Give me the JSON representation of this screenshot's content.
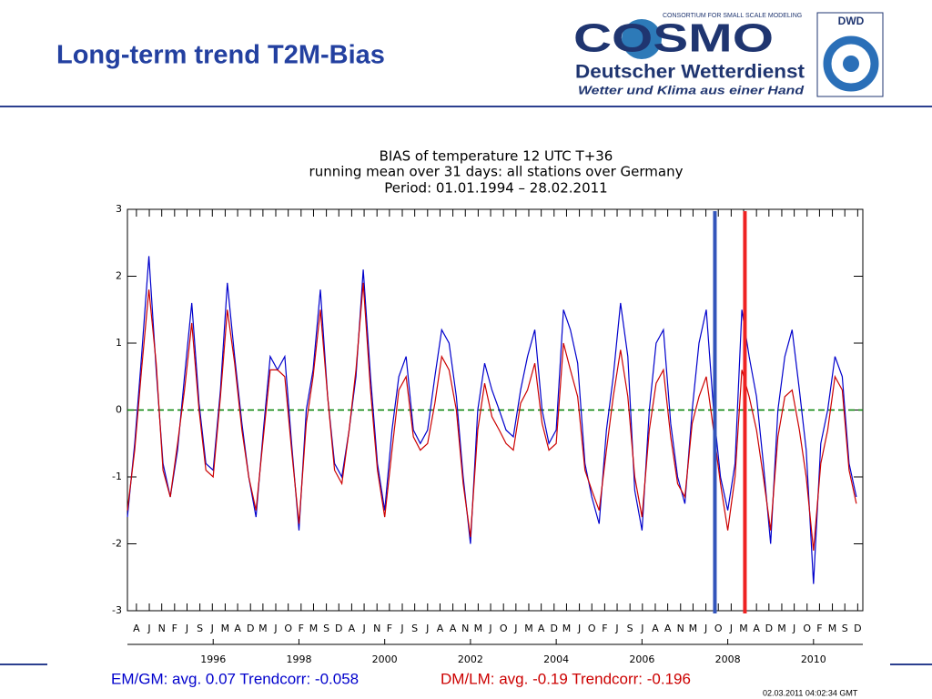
{
  "slide": {
    "title": "Long-term trend T2M-Bias",
    "logo_consortium": "CONSORTIUM FOR SMALL SCALE MODELING",
    "logo_cosmo": "COSMO",
    "logo_dwd_name": "Deutscher Wetterdienst",
    "logo_slogan": "Wetter und Klima aus einer Hand",
    "logo_dwd": "DWD",
    "footer_em": "EM/GM: avg.  0.07 Trendcorr: -0.058",
    "footer_dm": "DM/LM: avg. -0.19 Trendcorr: -0.196",
    "timestamp": "02.03.2011 04:02:34 GMT"
  },
  "chart_data": {
    "type": "line",
    "title": "BIAS of temperature 12 UTC T+36",
    "subtitle": "running mean over 31 days: all stations over Germany",
    "period": "Period: 01.01.1994 – 28.02.2011",
    "x": [
      1994.0,
      1994.17,
      1994.33,
      1994.5,
      1994.67,
      1994.83,
      1995.0,
      1995.17,
      1995.33,
      1995.5,
      1995.67,
      1995.83,
      1996.0,
      1996.17,
      1996.33,
      1996.5,
      1996.67,
      1996.83,
      1997.0,
      1997.17,
      1997.33,
      1997.5,
      1997.67,
      1997.83,
      1998.0,
      1998.17,
      1998.33,
      1998.5,
      1998.67,
      1998.83,
      1999.0,
      1999.17,
      1999.33,
      1999.5,
      1999.67,
      1999.83,
      2000.0,
      2000.17,
      2000.33,
      2000.5,
      2000.67,
      2000.83,
      2001.0,
      2001.17,
      2001.33,
      2001.5,
      2001.67,
      2001.83,
      2002.0,
      2002.17,
      2002.33,
      2002.5,
      2002.67,
      2002.83,
      2003.0,
      2003.17,
      2003.33,
      2003.5,
      2003.67,
      2003.83,
      2004.0,
      2004.17,
      2004.33,
      2004.5,
      2004.67,
      2004.83,
      2005.0,
      2005.17,
      2005.33,
      2005.5,
      2005.67,
      2005.83,
      2006.0,
      2006.17,
      2006.33,
      2006.5,
      2006.67,
      2006.83,
      2007.0,
      2007.17,
      2007.33,
      2007.5,
      2007.67,
      2007.83,
      2008.0,
      2008.17,
      2008.33,
      2008.5,
      2008.67,
      2008.83,
      2009.0,
      2009.17,
      2009.33,
      2009.5,
      2009.67,
      2009.83,
      2010.0,
      2010.17,
      2010.33,
      2010.5,
      2010.67,
      2010.83,
      2011.0
    ],
    "series": [
      {
        "name": "EM/GM",
        "color": "#0000cc",
        "values": [
          -1.6,
          -0.5,
          0.8,
          2.3,
          0.6,
          -0.8,
          -1.3,
          -0.6,
          0.5,
          1.6,
          0.1,
          -0.8,
          -0.9,
          0.3,
          1.9,
          0.8,
          -0.2,
          -1.0,
          -1.6,
          -0.3,
          0.8,
          0.6,
          0.8,
          -0.5,
          -1.8,
          0.0,
          0.6,
          1.8,
          0.2,
          -0.8,
          -1.0,
          -0.3,
          0.5,
          2.1,
          0.5,
          -0.8,
          -1.5,
          -0.3,
          0.5,
          0.8,
          -0.3,
          -0.5,
          -0.3,
          0.5,
          1.2,
          1.0,
          0.2,
          -1.0,
          -2.0,
          0.0,
          0.7,
          0.3,
          0.0,
          -0.3,
          -0.4,
          0.3,
          0.8,
          1.2,
          0.0,
          -0.5,
          -0.3,
          1.5,
          1.2,
          0.7,
          -0.8,
          -1.3,
          -1.7,
          -0.3,
          0.5,
          1.6,
          0.8,
          -1.2,
          -1.8,
          0.0,
          1.0,
          1.2,
          -0.2,
          -1.0,
          -1.4,
          0.0,
          1.0,
          1.5,
          0.0,
          -1.0,
          -1.5,
          -0.8,
          1.5,
          0.8,
          0.2,
          -0.8,
          -2.0,
          0.0,
          0.8,
          1.2,
          0.3,
          -0.6,
          -2.6,
          -0.5,
          0.0,
          0.8,
          0.5,
          -0.8,
          -1.3
        ]
      },
      {
        "name": "DM/LM",
        "color": "#cc0000",
        "values": [
          -1.5,
          -0.6,
          0.6,
          1.8,
          0.7,
          -0.9,
          -1.3,
          -0.5,
          0.3,
          1.3,
          0.0,
          -0.9,
          -1.0,
          0.2,
          1.5,
          0.7,
          -0.3,
          -1.0,
          -1.5,
          -0.4,
          0.6,
          0.6,
          0.5,
          -0.6,
          -1.7,
          -0.2,
          0.5,
          1.5,
          0.2,
          -0.9,
          -1.1,
          -0.3,
          0.6,
          1.9,
          0.3,
          -0.9,
          -1.6,
          -0.6,
          0.3,
          0.5,
          -0.4,
          -0.6,
          -0.5,
          0.1,
          0.8,
          0.6,
          0.0,
          -1.1,
          -1.9,
          -0.3,
          0.4,
          -0.1,
          -0.3,
          -0.5,
          -0.6,
          0.1,
          0.3,
          0.7,
          -0.2,
          -0.6,
          -0.5,
          1.0,
          0.6,
          0.2,
          -0.9,
          -1.2,
          -1.5,
          -0.6,
          0.2,
          0.9,
          0.2,
          -1.0,
          -1.6,
          -0.3,
          0.4,
          0.6,
          -0.4,
          -1.1,
          -1.3,
          -0.2,
          0.2,
          0.5,
          -0.3,
          -1.1,
          -1.8,
          -1.0,
          0.6,
          0.2,
          -0.3,
          -1.0,
          -1.8,
          -0.4,
          0.2,
          0.3,
          -0.3,
          -1.0,
          -2.1,
          -0.8,
          -0.3,
          0.5,
          0.3,
          -0.9,
          -1.4
        ]
      }
    ],
    "vlines": [
      {
        "x": 2007.7,
        "color": "#3355bb"
      },
      {
        "x": 2008.4,
        "color": "#ee2222"
      }
    ],
    "hline": {
      "y": 0,
      "color": "#008000",
      "dashed": true
    },
    "xlim": [
      1994,
      2011.15
    ],
    "ylim": [
      -3,
      3
    ],
    "yticks": [
      -3,
      -2,
      -1,
      0,
      1,
      2,
      3
    ],
    "xticks": [
      1996,
      1998,
      2000,
      2002,
      2004,
      2006,
      2008,
      2010
    ],
    "month_ticks": [
      {
        "value": 1994.21,
        "label": "A"
      },
      {
        "value": 1994.51,
        "label": "J"
      },
      {
        "value": 1994.8,
        "label": "N"
      },
      {
        "value": 1995.1,
        "label": "F"
      },
      {
        "value": 1995.39,
        "label": "J"
      },
      {
        "value": 1995.69,
        "label": "S"
      },
      {
        "value": 1995.98,
        "label": "J"
      },
      {
        "value": 1996.28,
        "label": "M"
      },
      {
        "value": 1996.57,
        "label": "A"
      },
      {
        "value": 1996.87,
        "label": "D"
      },
      {
        "value": 1997.16,
        "label": "M"
      },
      {
        "value": 1997.46,
        "label": "J"
      },
      {
        "value": 1997.75,
        "label": "O"
      },
      {
        "value": 1998.05,
        "label": "F"
      },
      {
        "value": 1998.34,
        "label": "M"
      },
      {
        "value": 1998.64,
        "label": "S"
      },
      {
        "value": 1998.93,
        "label": "D"
      },
      {
        "value": 1999.23,
        "label": "A"
      },
      {
        "value": 1999.52,
        "label": "J"
      },
      {
        "value": 1999.82,
        "label": "N"
      },
      {
        "value": 2000.11,
        "label": "F"
      },
      {
        "value": 2000.41,
        "label": "J"
      },
      {
        "value": 2000.7,
        "label": "S"
      },
      {
        "value": 2001.0,
        "label": "J"
      },
      {
        "value": 2001.29,
        "label": "A"
      },
      {
        "value": 2001.59,
        "label": "A"
      },
      {
        "value": 2001.88,
        "label": "N"
      },
      {
        "value": 2002.18,
        "label": "M"
      },
      {
        "value": 2002.47,
        "label": "J"
      },
      {
        "value": 2002.77,
        "label": "O"
      },
      {
        "value": 2003.06,
        "label": "J"
      },
      {
        "value": 2003.36,
        "label": "M"
      },
      {
        "value": 2003.65,
        "label": "A"
      },
      {
        "value": 2003.95,
        "label": "D"
      },
      {
        "value": 2004.24,
        "label": "M"
      },
      {
        "value": 2004.54,
        "label": "J"
      },
      {
        "value": 2004.83,
        "label": "O"
      },
      {
        "value": 2005.13,
        "label": "F"
      },
      {
        "value": 2005.42,
        "label": "J"
      },
      {
        "value": 2005.72,
        "label": "S"
      },
      {
        "value": 2006.01,
        "label": "J"
      },
      {
        "value": 2006.31,
        "label": "A"
      },
      {
        "value": 2006.6,
        "label": "A"
      },
      {
        "value": 2006.9,
        "label": "N"
      },
      {
        "value": 2007.19,
        "label": "M"
      },
      {
        "value": 2007.49,
        "label": "J"
      },
      {
        "value": 2007.78,
        "label": "O"
      },
      {
        "value": 2008.08,
        "label": "J"
      },
      {
        "value": 2008.37,
        "label": "M"
      },
      {
        "value": 2008.67,
        "label": "A"
      },
      {
        "value": 2008.96,
        "label": "D"
      },
      {
        "value": 2009.26,
        "label": "M"
      },
      {
        "value": 2009.55,
        "label": "J"
      },
      {
        "value": 2009.85,
        "label": "O"
      },
      {
        "value": 2010.14,
        "label": "F"
      },
      {
        "value": 2010.44,
        "label": "M"
      },
      {
        "value": 2010.73,
        "label": "S"
      },
      {
        "value": 2011.03,
        "label": "D"
      }
    ]
  }
}
